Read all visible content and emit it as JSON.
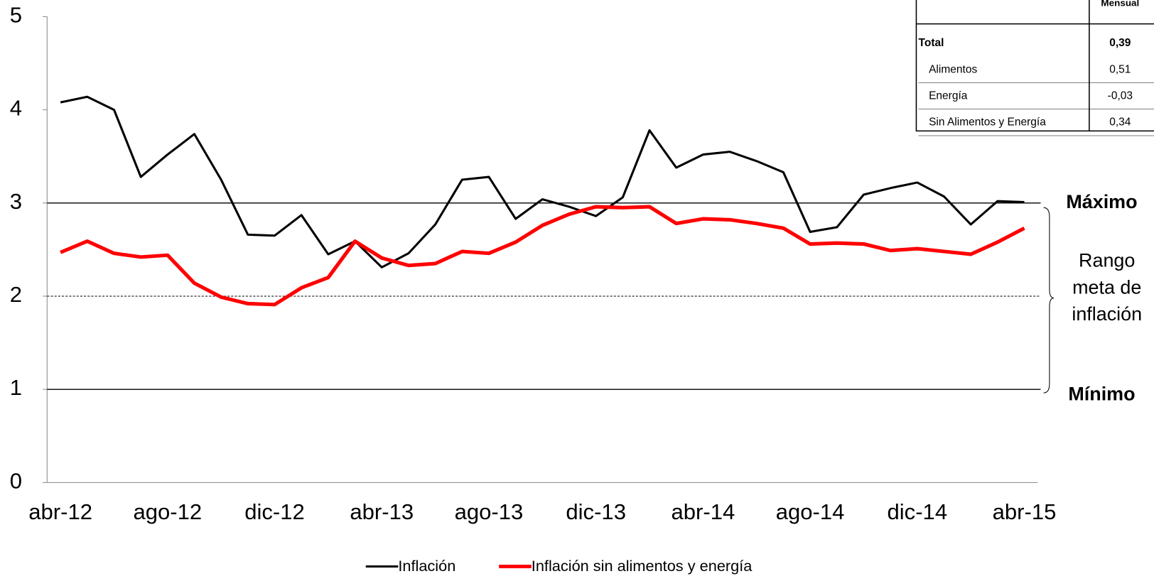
{
  "chart_data": {
    "type": "line",
    "categories": [
      "abr-12",
      null,
      null,
      null,
      "ago-12",
      null,
      null,
      null,
      "dic-12",
      null,
      null,
      null,
      "abr-13",
      null,
      null,
      null,
      "ago-13",
      null,
      null,
      null,
      "dic-13",
      null,
      null,
      null,
      "abr-14",
      null,
      null,
      null,
      "ago-14",
      null,
      null,
      null,
      "dic-14",
      null,
      null,
      null,
      "abr-15"
    ],
    "series": [
      {
        "name": "Inflación",
        "color": "#000000",
        "width": 3,
        "values": [
          4.08,
          4.14,
          4.0,
          3.28,
          3.52,
          3.74,
          3.25,
          2.66,
          2.65,
          2.87,
          2.45,
          2.59,
          2.31,
          2.46,
          2.77,
          3.25,
          3.28,
          2.83,
          3.04,
          2.96,
          2.86,
          3.06,
          3.78,
          3.38,
          3.52,
          3.55,
          3.45,
          3.33,
          2.69,
          2.74,
          3.09,
          3.16,
          3.22,
          3.07,
          2.77,
          3.02,
          3.01
        ]
      },
      {
        "name": "Inflación sin alimentos y energía",
        "color": "#ff0000",
        "width": 5,
        "values": [
          2.47,
          2.59,
          2.46,
          2.42,
          2.44,
          2.14,
          1.99,
          1.92,
          1.91,
          2.09,
          2.2,
          2.59,
          2.41,
          2.33,
          2.35,
          2.48,
          2.46,
          2.58,
          2.76,
          2.88,
          2.96,
          2.95,
          2.96,
          2.78,
          2.83,
          2.82,
          2.78,
          2.73,
          2.56,
          2.57,
          2.56,
          2.49,
          2.51,
          2.48,
          2.45,
          2.58,
          2.73
        ]
      }
    ],
    "ylim": [
      0,
      5
    ],
    "yticks": [
      0,
      1,
      2,
      3,
      4,
      5
    ],
    "reference_lines": [
      {
        "value": 3,
        "label": "Máximo",
        "style": "solid"
      },
      {
        "value": 2,
        "style": "dashed"
      },
      {
        "value": 1,
        "label": "Mínimo",
        "style": "solid"
      }
    ],
    "range_label": [
      "Rango",
      "meta de",
      "inflación"
    ]
  },
  "table": {
    "header": "Mensual",
    "rows": [
      [
        "Total",
        "0,39"
      ],
      [
        "Alimentos",
        "0,51"
      ],
      [
        "Energía",
        "-0,03"
      ],
      [
        "Sin Alimentos y Energía",
        "0,34"
      ]
    ]
  }
}
